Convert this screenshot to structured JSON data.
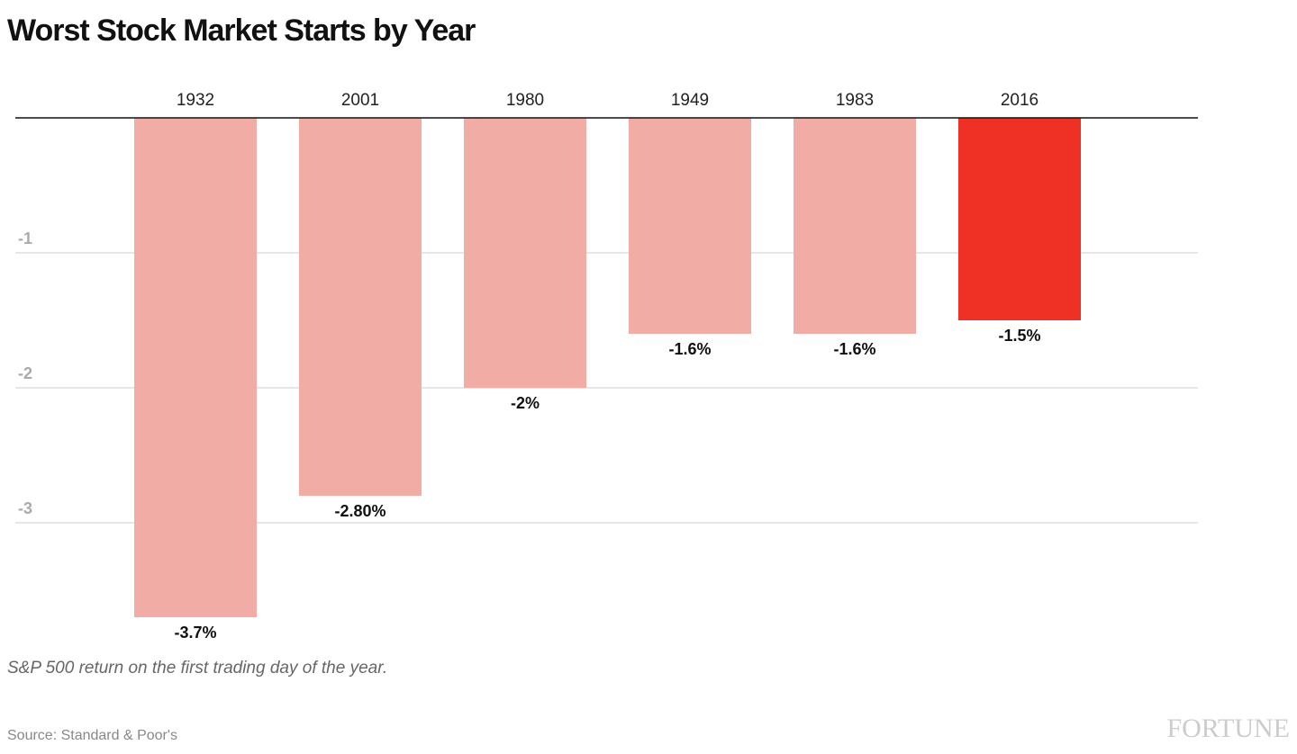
{
  "chart_data": {
    "type": "bar",
    "title": "Worst Stock Market Starts by Year",
    "categories": [
      "1932",
      "2001",
      "1980",
      "1949",
      "1983",
      "2016"
    ],
    "values": [
      -3.7,
      -2.8,
      -2,
      -1.6,
      -1.6,
      -1.5
    ],
    "value_labels": [
      "-3.7%",
      "-2.80%",
      "-2%",
      "-1.6%",
      "-1.6%",
      "-1.5%"
    ],
    "colors": [
      "#f0aca5",
      "#f0aca5",
      "#f0aca5",
      "#f0aca5",
      "#f0aca5",
      "#ee3124"
    ],
    "ylim": [
      -3.7,
      0
    ],
    "yticks": [
      -1,
      -2,
      -3
    ],
    "grid": true,
    "note": "S&P 500 return on the first trading day of the year.",
    "source": "Source: Standard & Poor's",
    "logo": "FORTUNE"
  }
}
